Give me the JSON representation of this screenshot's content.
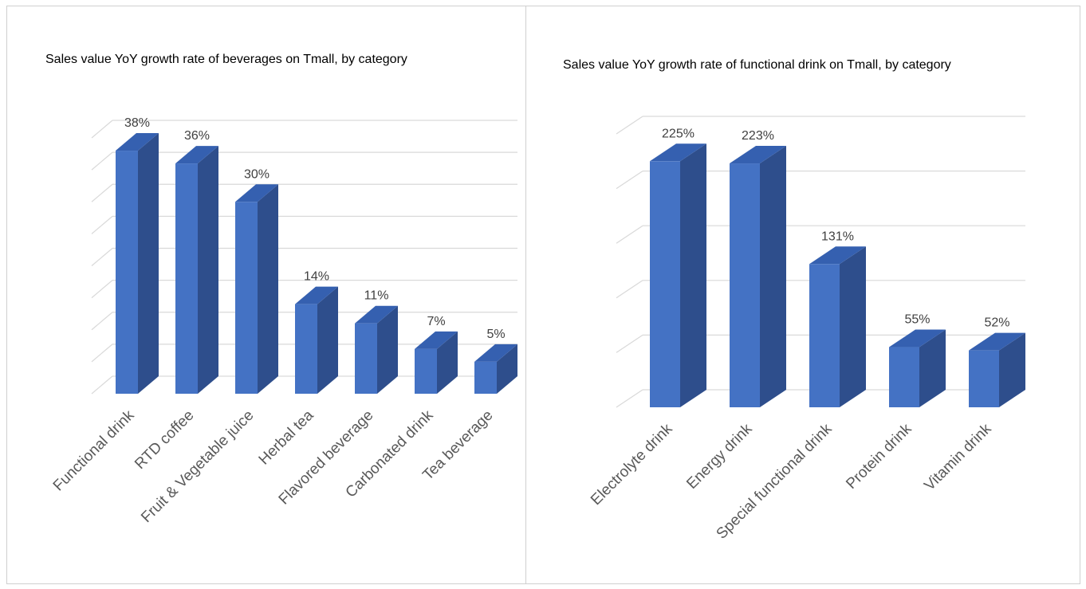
{
  "colors": {
    "bar_front": "#4472C4",
    "bar_side": "#2E4E8C",
    "bar_top": "#3560B0",
    "grid": "#d9d9d9"
  },
  "chart_data": [
    {
      "type": "bar",
      "title": "Sales value YoY growth rate of beverages on Tmall, by category",
      "categories": [
        "Functional drink",
        "RTD coffee",
        "Fruit & Vegetable juice",
        "Herbal tea",
        "Flavored beverage",
        "Carbonated drink",
        "Tea beverage"
      ],
      "values": [
        38,
        36,
        30,
        14,
        11,
        7,
        5
      ],
      "data_labels": [
        "38%",
        "36%",
        "30%",
        "14%",
        "11%",
        "7%",
        "5%"
      ],
      "unit": "%",
      "ylim": [
        0,
        40
      ],
      "grid": true,
      "legend": "none"
    },
    {
      "type": "bar",
      "title": "Sales value YoY growth rate of functional drink on Tmall, by category",
      "categories": [
        "Electrolyte drink",
        "Energy drink",
        "Special functional drink",
        "Protein drink",
        "Vitamin drink"
      ],
      "values": [
        225,
        223,
        131,
        55,
        52
      ],
      "data_labels": [
        "225%",
        "223%",
        "131%",
        "55%",
        "52%"
      ],
      "unit": "%",
      "ylim": [
        0,
        250
      ],
      "grid": true,
      "legend": "none"
    }
  ]
}
